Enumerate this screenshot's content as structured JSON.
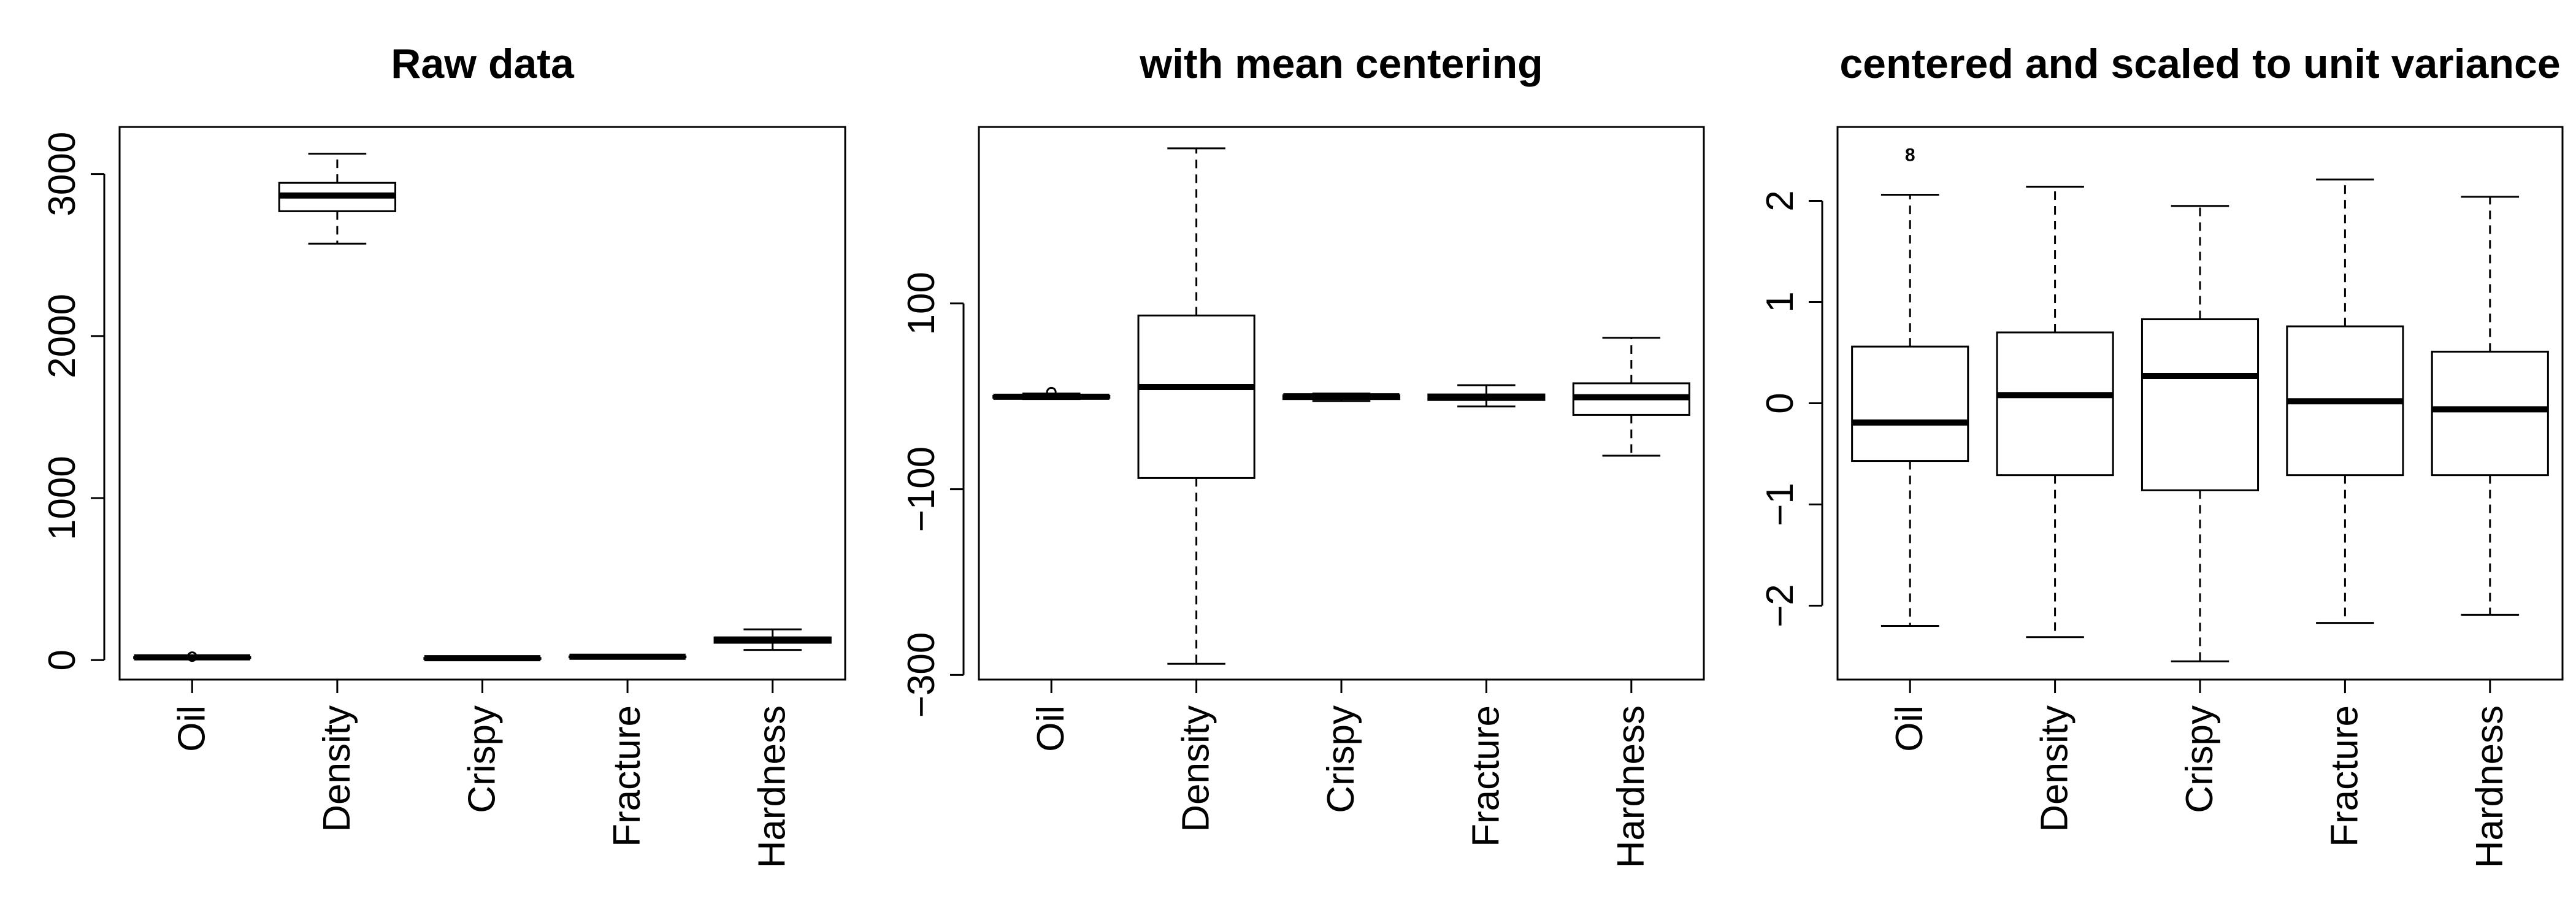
{
  "chart_data": [
    {
      "type": "box",
      "title": "Raw data",
      "xlabel": "",
      "ylabel": "",
      "ylim": [
        -120,
        3290
      ],
      "yticks": [
        0,
        1000,
        2000,
        3000
      ],
      "categories": [
        "Oil",
        "Density",
        "Crispy",
        "Fracture",
        "Hardness"
      ],
      "boxes": [
        {
          "min": 14,
          "q1": 16.5,
          "median": 17.2,
          "q3": 18.2,
          "max": 21
        },
        {
          "min": 2570,
          "q1": 2770,
          "median": 2867,
          "q3": 2945,
          "max": 3125
        },
        {
          "min": 7,
          "q1": 9,
          "median": 12,
          "q3": 13,
          "max": 15
        },
        {
          "min": 13,
          "q1": 18,
          "median": 21,
          "q3": 23,
          "max": 30
        },
        {
          "min": 63,
          "q1": 107,
          "median": 127,
          "q3": 140,
          "max": 190
        }
      ],
      "outliers": [
        {
          "category": "Oil",
          "value": 21.5,
          "label": ""
        }
      ]
    },
    {
      "type": "box",
      "title": "with mean centering",
      "xlabel": "",
      "ylabel": "",
      "ylim": [
        -305,
        290
      ],
      "yticks": [
        -300,
        -100,
        100
      ],
      "categories": [
        "Oil",
        "Density",
        "Crispy",
        "Fracture",
        "Hardness"
      ],
      "boxes": [
        {
          "min": -3,
          "q1": -1.5,
          "median": -0.5,
          "q3": 0.5,
          "max": 3
        },
        {
          "min": -288,
          "q1": -88,
          "median": 10,
          "q3": 87,
          "max": 267
        },
        {
          "min": -5,
          "q1": -3,
          "median": 0,
          "q3": 1,
          "max": 3
        },
        {
          "min": -11,
          "q1": -4,
          "median": -1,
          "q3": 2,
          "max": 12
        },
        {
          "min": -64,
          "q1": -20,
          "median": -1,
          "q3": 14,
          "max": 63
        }
      ],
      "outliers": [
        {
          "category": "Oil",
          "value": 4.5,
          "label": ""
        }
      ]
    },
    {
      "type": "box",
      "title": "centered and scaled to unit variance",
      "xlabel": "",
      "ylabel": "",
      "ylim": [
        -2.73,
        2.73
      ],
      "yticks": [
        -2,
        -1,
        0,
        1,
        2
      ],
      "categories": [
        "Oil",
        "Density",
        "Crispy",
        "Fracture",
        "Hardness"
      ],
      "boxes": [
        {
          "min": -2.2,
          "q1": -0.57,
          "median": -0.19,
          "q3": 0.56,
          "max": 2.06
        },
        {
          "min": -2.31,
          "q1": -0.71,
          "median": 0.08,
          "q3": 0.7,
          "max": 2.14
        },
        {
          "min": -2.55,
          "q1": -0.86,
          "median": 0.27,
          "q3": 0.83,
          "max": 1.95
        },
        {
          "min": -2.17,
          "q1": -0.71,
          "median": 0.02,
          "q3": 0.76,
          "max": 2.21
        },
        {
          "min": -2.09,
          "q1": -0.71,
          "median": -0.06,
          "q3": 0.51,
          "max": 2.04
        }
      ],
      "outliers": [
        {
          "category": "Oil",
          "value": 2.46,
          "label": "8"
        }
      ]
    }
  ]
}
